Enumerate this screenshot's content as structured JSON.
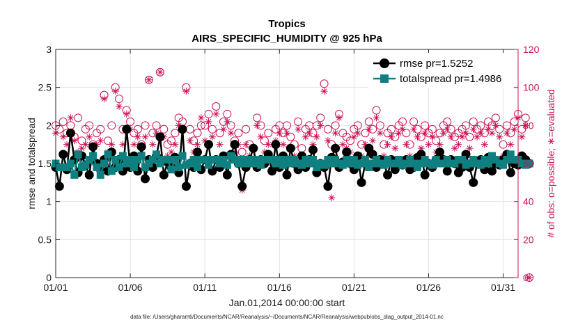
{
  "chart_data": {
    "type": "line",
    "title": "Tropics",
    "subtitle": "AIRS_SPECIFIC_HUMIDITY @ 925 hPa",
    "xlabel": "Jan.01,2014 00:00:00 start",
    "ylabel": "rmse and totalspread",
    "ylabel_right": "# of obs: o=possible; ∗=evaluated",
    "footer": "data file: /Users/gharamti/Documents/NCAR/Reanalysis/~/Documents/NCAR/Reanalysis/webpub/obs_diag_output_2014-01.nc",
    "xlim": [
      1,
      32
    ],
    "xticks": [
      1,
      6,
      11,
      16,
      21,
      26,
      31
    ],
    "xtick_labels": [
      "01/01",
      "01/06",
      "01/11",
      "01/16",
      "01/21",
      "01/26",
      "01/31"
    ],
    "ylim": [
      0,
      3
    ],
    "yticks": [
      0,
      0.5,
      1,
      1.5,
      2,
      2.5,
      3
    ],
    "ytick_labels": [
      "0",
      "0.5",
      "1",
      "1.5",
      "2",
      "2.5",
      "3"
    ],
    "ylim_right": [
      0,
      120
    ],
    "yticks_right": [
      0,
      20,
      40,
      60,
      80,
      100,
      120
    ],
    "ytick_labels_right": [
      "0",
      "20",
      "40",
      "60",
      "80",
      "100",
      "120"
    ],
    "grid": true,
    "legend_position": "top-right",
    "colors": {
      "rmse": "#000000",
      "totalspread": "#0f7f7f",
      "obs": "#cc1155"
    },
    "series": [
      {
        "name": "rmse pr=1.5252",
        "axis": "left",
        "marker": "circle",
        "t0": 1.0,
        "dt": 0.25,
        "values": [
          1.45,
          1.2,
          1.62,
          1.42,
          1.9,
          1.55,
          1.38,
          1.6,
          1.48,
          1.35,
          1.72,
          1.5,
          1.42,
          1.55,
          1.4,
          1.65,
          1.45,
          1.55,
          1.4,
          1.95,
          1.45,
          1.6,
          1.4,
          1.72,
          1.3,
          1.55,
          1.45,
          1.6,
          1.85,
          1.35,
          1.52,
          1.45,
          1.58,
          1.38,
          1.95,
          1.2,
          1.5,
          1.45,
          1.65,
          1.42,
          1.55,
          1.75,
          1.4,
          1.55,
          1.45,
          1.6,
          1.35,
          1.62,
          1.75,
          1.5,
          1.2,
          1.45,
          1.55,
          1.7,
          1.45,
          1.55,
          1.5,
          1.62,
          1.4,
          1.75,
          1.45,
          1.6,
          1.35,
          1.7,
          1.5,
          1.42,
          1.6,
          1.45,
          1.55,
          1.68,
          1.38,
          1.5,
          1.45,
          1.2,
          1.58,
          1.7,
          1.45,
          1.52,
          1.65,
          1.5,
          1.42,
          1.6,
          1.25,
          1.5,
          1.7,
          1.62,
          1.45,
          1.55,
          1.5,
          1.35,
          1.55,
          1.42,
          1.5,
          1.48,
          1.55,
          1.42,
          1.45,
          1.58,
          1.62,
          1.35,
          1.5,
          1.45,
          1.55,
          1.65,
          1.55,
          1.4,
          1.55,
          1.5,
          1.38,
          1.45,
          1.62,
          1.45,
          1.25,
          1.5,
          1.55,
          1.42,
          1.58,
          1.4,
          1.5,
          1.48,
          1.55,
          1.62,
          1.38,
          1.5,
          1.48,
          1.6,
          1.55,
          1.5
        ]
      },
      {
        "name": "totalspread pr=1.4986",
        "axis": "left",
        "marker": "square",
        "t0": 1.0,
        "dt": 0.25,
        "values": [
          1.5,
          1.45,
          1.45,
          1.45,
          1.5,
          1.35,
          1.62,
          1.45,
          1.48,
          1.55,
          1.6,
          1.45,
          1.35,
          1.5,
          1.62,
          1.4,
          1.55,
          1.45,
          1.6,
          1.5,
          1.55,
          1.45,
          1.55,
          1.6,
          1.45,
          1.5,
          1.55,
          1.62,
          1.5,
          1.55,
          1.55,
          1.42,
          1.55,
          1.45,
          1.6,
          1.48,
          1.5,
          1.55,
          1.45,
          1.55,
          1.55,
          1.48,
          1.55,
          1.55,
          1.5,
          1.55,
          1.48,
          1.6,
          1.55,
          1.5,
          1.55,
          1.5,
          1.55,
          1.5,
          1.55,
          1.48,
          1.55,
          1.55,
          1.55,
          1.5,
          1.55,
          1.48,
          1.55,
          1.5,
          1.55,
          1.5,
          1.48,
          1.55,
          1.5,
          1.55,
          1.45,
          1.5,
          1.48,
          1.55,
          1.5,
          1.55,
          1.5,
          1.48,
          1.55,
          1.5,
          1.55,
          1.48,
          1.5,
          1.55,
          1.45,
          1.5,
          1.55,
          1.5,
          1.48,
          1.55,
          1.5,
          1.5,
          1.55,
          1.48,
          1.5,
          1.55,
          1.5,
          1.45,
          1.5,
          1.55,
          1.5,
          1.48,
          1.55,
          1.5,
          1.5,
          1.55,
          1.5,
          1.5,
          1.55,
          1.55,
          1.48,
          1.5,
          1.55,
          1.5,
          1.48,
          1.55,
          1.5,
          1.6,
          1.55,
          1.5,
          1.48,
          1.55,
          1.62,
          1.55,
          1.55,
          1.5,
          1.48,
          1.5
        ]
      },
      {
        "name": "possible",
        "axis": "right",
        "marker": "circle-open",
        "t0": 1.0,
        "dt": 0.25,
        "values": [
          80,
          78,
          82,
          76,
          80,
          74,
          84,
          72,
          78,
          80,
          70,
          76,
          78,
          96,
          72,
          80,
          100,
          94,
          78,
          88,
          82,
          76,
          78,
          70,
          80,
          104,
          76,
          80,
          108,
          78,
          70,
          72,
          76,
          84,
          82,
          100,
          78,
          72,
          76,
          80,
          80,
          86,
          78,
          90,
          76,
          82,
          86,
          80,
          72,
          76,
          66,
          78,
          70,
          68,
          84,
          80,
          72,
          76,
          62,
          78,
          80,
          76,
          80,
          74,
          70,
          82,
          68,
          78,
          80,
          76,
          80,
          84,
          102,
          78,
          70,
          80,
          86,
          76,
          74,
          72,
          78,
          80,
          70,
          76,
          82,
          78,
          88,
          80,
          70,
          76,
          78,
          74,
          80,
          82,
          76,
          70,
          82,
          78,
          74,
          80,
          76,
          78,
          72,
          76,
          80,
          82,
          78,
          74,
          76,
          78,
          80,
          74,
          82,
          78,
          80,
          76,
          82,
          80,
          84,
          78,
          70,
          80,
          76,
          82,
          86,
          78,
          84,
          0
        ]
      },
      {
        "name": "evaluated",
        "axis": "right",
        "marker": "star",
        "t0": 1.0,
        "dt": 0.25,
        "values": [
          76,
          58,
          74,
          70,
          84,
          72,
          66,
          68,
          70,
          74,
          64,
          70,
          72,
          94,
          66,
          70,
          98,
          90,
          70,
          86,
          78,
          70,
          74,
          66,
          74,
          104,
          70,
          76,
          108,
          74,
          64,
          66,
          70,
          80,
          78,
          98,
          72,
          66,
          70,
          84,
          72,
          82,
          74,
          86,
          70,
          78,
          82,
          76,
          66,
          70,
          46,
          70,
          64,
          62,
          80,
          74,
          66,
          70,
          58,
          72,
          76,
          70,
          76,
          68,
          64,
          78,
          62,
          74,
          76,
          70,
          74,
          80,
          98,
          72,
          42,
          76,
          84,
          70,
          68,
          66,
          74,
          76,
          64,
          70,
          78,
          72,
          84,
          76,
          64,
          70,
          74,
          68,
          76,
          78,
          70,
          64,
          78,
          74,
          68,
          76,
          70,
          74,
          66,
          70,
          76,
          78,
          74,
          68,
          70,
          74,
          76,
          68,
          78,
          74,
          76,
          70,
          78,
          76,
          80,
          74,
          64,
          76,
          70,
          78,
          84,
          74,
          80,
          0
        ]
      }
    ]
  }
}
